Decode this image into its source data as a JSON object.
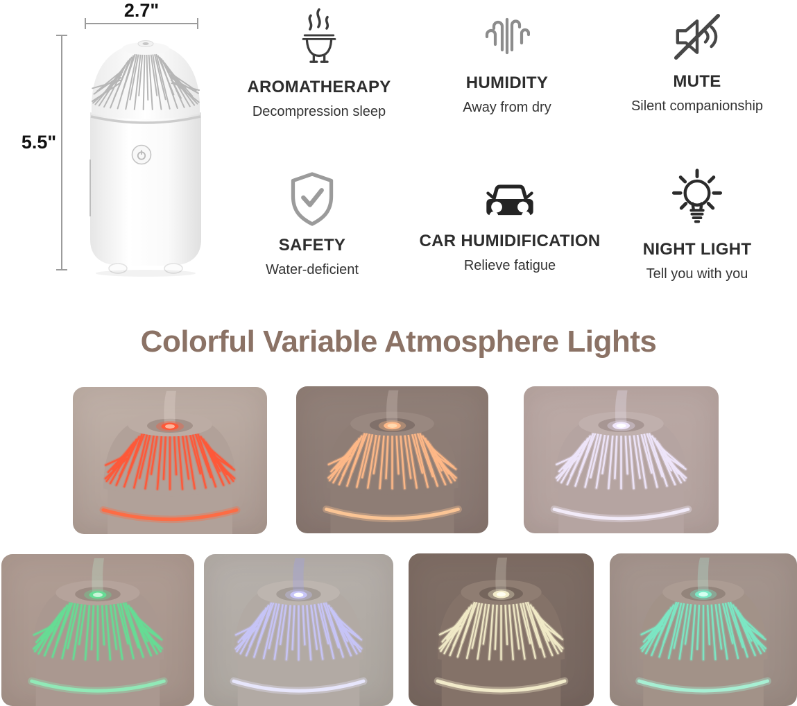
{
  "product": {
    "width_label": "2.7\"",
    "height_label": "5.5\""
  },
  "features": [
    {
      "icon": "aromatherapy-icon",
      "title": "AROMATHERAPY",
      "subtitle": "Decompression sleep"
    },
    {
      "icon": "humidity-icon",
      "title": "HUMIDITY",
      "subtitle": "Away from dry"
    },
    {
      "icon": "mute-icon",
      "title": "MUTE",
      "subtitle": "Silent companionship"
    },
    {
      "icon": "safety-icon",
      "title": "SAFETY",
      "subtitle": "Water-deficient"
    },
    {
      "icon": "car-icon",
      "title": "CAR HUMIDIFICATION",
      "subtitle": "Relieve fatigue"
    },
    {
      "icon": "night-light-icon",
      "title": "NIGHT LIGHT",
      "subtitle": "Tell you with you"
    }
  ],
  "section": {
    "heading": "Colorful Variable Atmosphere Lights",
    "heading_color": "#8b7265"
  },
  "photos": [
    {
      "name": "red-light",
      "bg_top": "#c2b3aa",
      "bg_bottom": "#ab9a92",
      "body": "#b1a199",
      "cap": "#bcaca4",
      "crater": "#a3928a",
      "glow": "#ff5838",
      "core": "#ffb49a",
      "ring": "#ff6a42",
      "mist": "#e8d9d4"
    },
    {
      "name": "orange-light",
      "bg_top": "#93827a",
      "bg_bottom": "#877670",
      "body": "#8e7d75",
      "cap": "#998880",
      "crater": "#80706a",
      "glow": "#ffb988",
      "core": "#ffd9b0",
      "ring": "#ffc796",
      "mist": "#d8c8c0"
    },
    {
      "name": "lilac-light",
      "bg_top": "#bcaaa6",
      "bg_bottom": "#b2a19d",
      "body": "#b5a4a1",
      "cap": "#c0b0ad",
      "crater": "#a79693",
      "glow": "#efe6fb",
      "core": "#ffffff",
      "ring": "#f3edfc",
      "mist": "#efe8fa"
    },
    {
      "name": "green-light",
      "bg_top": "#b19e95",
      "bg_bottom": "#a5938a",
      "body": "#aa9890",
      "cap": "#b5a39b",
      "crater": "#9c8a82",
      "glow": "#66dd95",
      "core": "#c8f5d8",
      "ring": "#90ecb8",
      "mist": "#bfe9cc"
    },
    {
      "name": "blue-violet-light",
      "bg_top": "#b7b1ac",
      "bg_bottom": "#aca69f",
      "body": "#b2aaa4",
      "cap": "#bdb5af",
      "crater": "#a49c96",
      "glow": "#c7c5f8",
      "core": "#ffffff",
      "ring": "#e9e8ff",
      "mist": "#9aa0f0"
    },
    {
      "name": "warm-white-light",
      "bg_top": "#806f66",
      "bg_bottom": "#776760",
      "body": "#847268",
      "cap": "#8f7d72",
      "crater": "#75655c",
      "glow": "#f2ebc8",
      "core": "#fffef0",
      "ring": "#f5efce",
      "mist": "#d6cfc2"
    },
    {
      "name": "mint-light",
      "bg_top": "#a79790",
      "bg_bottom": "#9b8c84",
      "body": "#a29288",
      "cap": "#ac9c93",
      "crater": "#93847b",
      "glow": "#7ce8c5",
      "core": "#d6fff0",
      "ring": "#a8f2d6",
      "mist": "#b3ead9"
    }
  ]
}
